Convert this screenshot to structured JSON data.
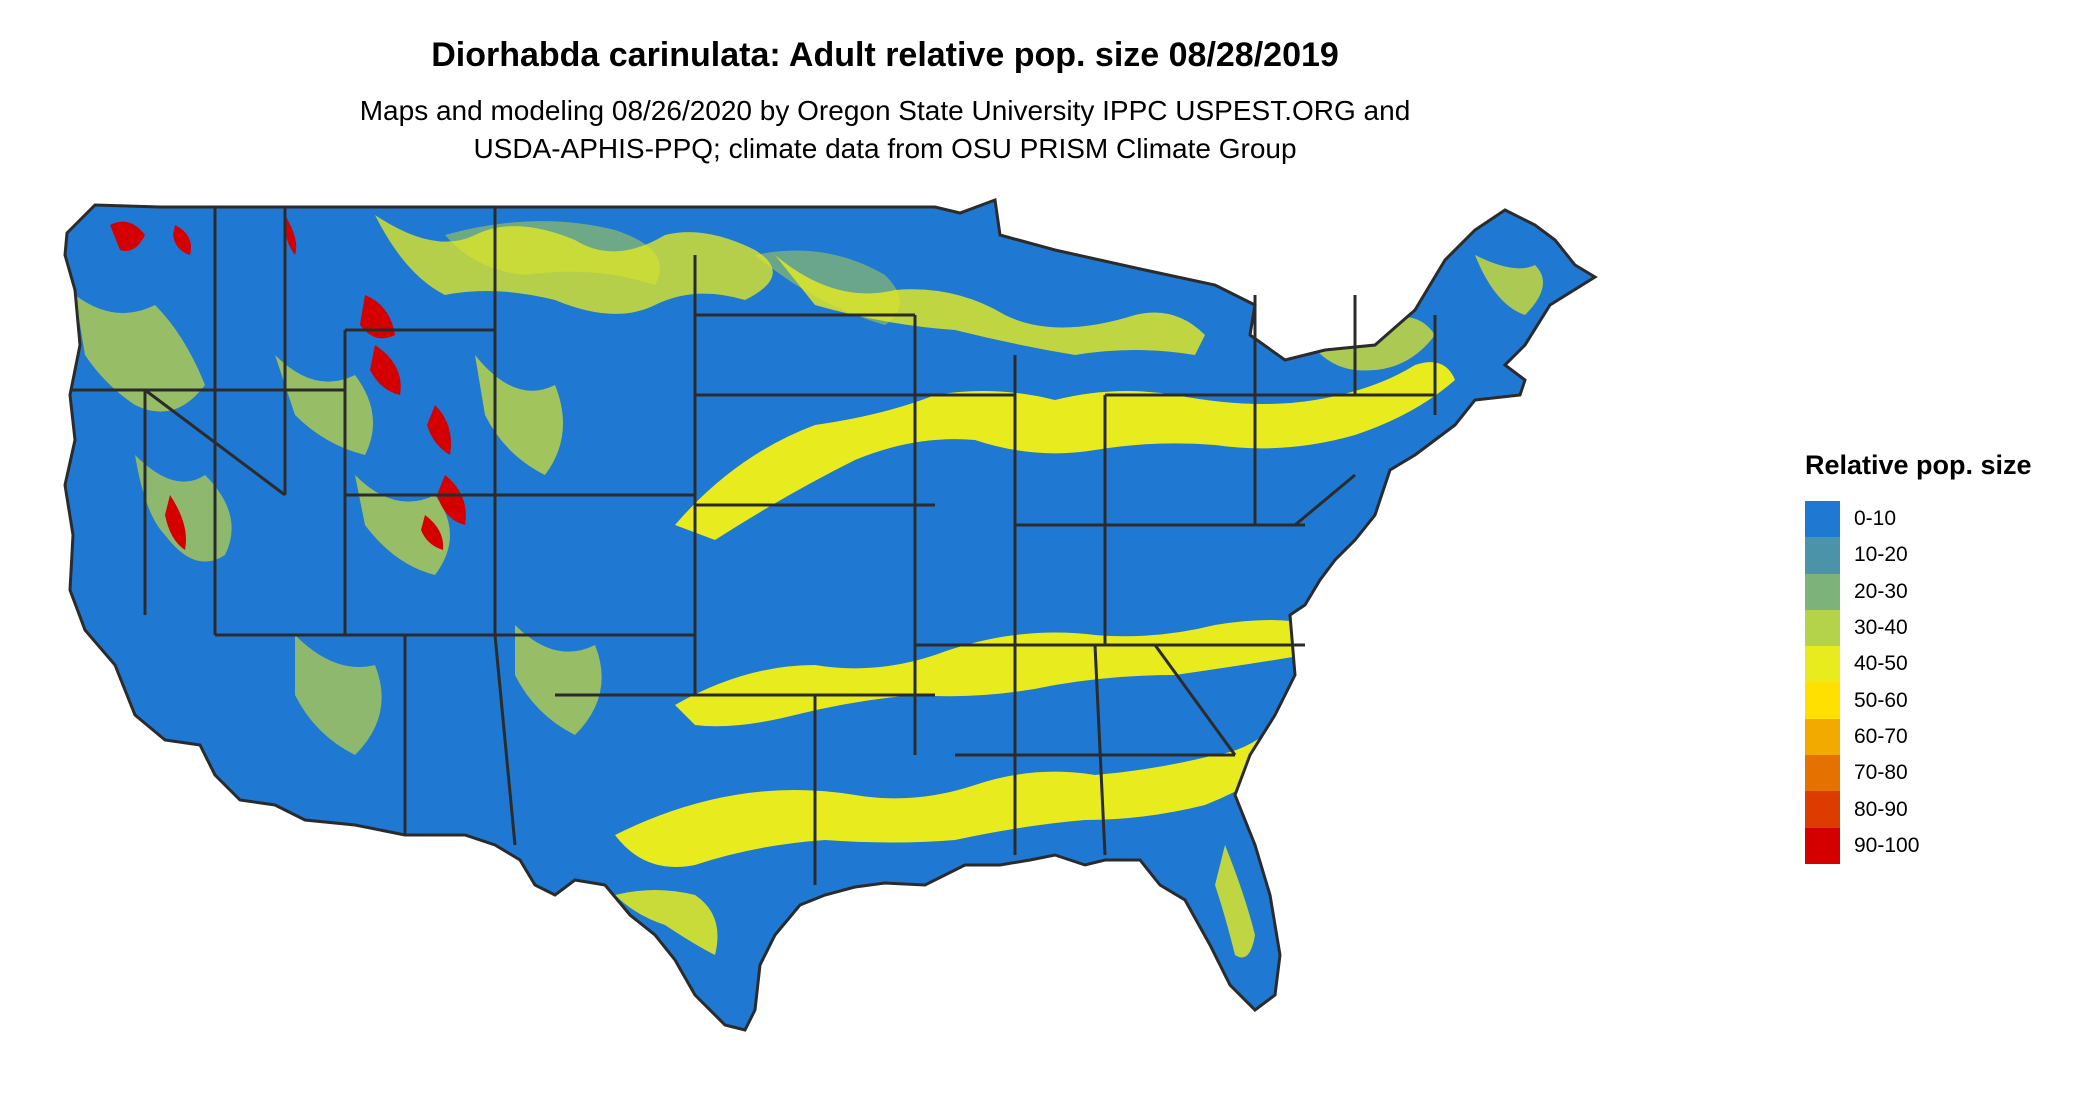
{
  "title": "Diorhabda carinulata: Adult relative pop. size 08/28/2019",
  "subtitle_lines": [
    "Maps and modeling 08/26/2020 by Oregon State University IPPC USPEST.ORG and",
    "USDA-APHIS-PPQ; climate data from OSU PRISM Climate Group"
  ],
  "legend": {
    "title": "Relative pop. size",
    "items": [
      {
        "label": "0-10",
        "color": "#1f78d1"
      },
      {
        "label": "10-20",
        "color": "#4a93a8"
      },
      {
        "label": "20-30",
        "color": "#7db27a"
      },
      {
        "label": "30-40",
        "color": "#b4d24a"
      },
      {
        "label": "40-50",
        "color": "#e8ec1e"
      },
      {
        "label": "50-60",
        "color": "#ffe000"
      },
      {
        "label": "60-70",
        "color": "#f2a900"
      },
      {
        "label": "70-80",
        "color": "#e57200"
      },
      {
        "label": "80-90",
        "color": "#dd3c00"
      },
      {
        "label": "90-100",
        "color": "#d40000"
      }
    ]
  },
  "map_colors": {
    "base": "#1f78d1",
    "band": "#e8ec1e",
    "green": "#7db27a",
    "hot": "#d40000",
    "border": "#2b2b2b"
  }
}
